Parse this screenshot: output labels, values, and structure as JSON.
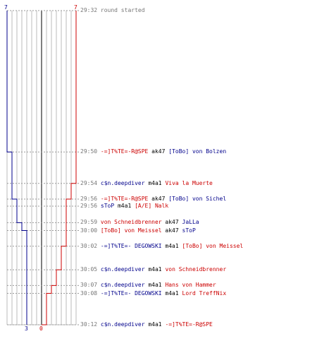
{
  "colors": {
    "blue_team": "#00008b",
    "red_team": "#cc0000",
    "weapon": "#000000",
    "time": "#777777",
    "grid": "#bbbbbb",
    "center": "#555555",
    "dashed": "#999999"
  },
  "chart_data": {
    "type": "line",
    "series": [
      {
        "color": "#00008b",
        "points": [
          [
            0,
            7
          ],
          [
            18,
            7
          ],
          [
            18,
            6
          ],
          [
            24,
            6
          ],
          [
            24,
            5
          ],
          [
            27,
            5
          ],
          [
            27,
            4
          ],
          [
            28,
            4
          ],
          [
            28,
            3
          ],
          [
            40,
            3
          ]
        ]
      },
      {
        "color": "#cc0000",
        "points": [
          [
            0,
            7
          ],
          [
            18,
            7
          ],
          [
            22,
            7
          ],
          [
            22,
            6
          ],
          [
            24,
            6
          ],
          [
            24,
            5
          ],
          [
            30,
            5
          ],
          [
            30,
            4
          ],
          [
            33,
            4
          ],
          [
            33,
            3
          ],
          [
            35,
            3
          ],
          [
            35,
            2
          ],
          [
            36,
            2
          ],
          [
            36,
            1
          ],
          [
            40,
            1
          ],
          [
            40,
            0
          ]
        ]
      }
    ],
    "top_labels": {
      "left": "7",
      "right": "7"
    },
    "bottom_labels": {
      "blue": "3",
      "red": "0"
    }
  },
  "events": [
    {
      "time": "29:32",
      "parts": [
        {
          "t": "round started",
          "c": "gray"
        }
      ]
    },
    {
      "time": "29:50",
      "parts": [
        {
          "t": "-=]T%TE=-R@SPE",
          "c": "red"
        },
        {
          "t": " ak47 ",
          "c": "blk"
        },
        {
          "t": "[ToBo] von Bolzen",
          "c": "blue"
        }
      ]
    },
    {
      "time": "29:54",
      "parts": [
        {
          "t": "c$n.deepdiver",
          "c": "blue"
        },
        {
          "t": " m4a1 ",
          "c": "blk"
        },
        {
          "t": "Viva la Muerte",
          "c": "red"
        }
      ]
    },
    {
      "time": "29:56",
      "parts": [
        {
          "t": "-=]T%TE=-R@SPE",
          "c": "red"
        },
        {
          "t": " ak47 ",
          "c": "blk"
        },
        {
          "t": "[ToBo] von Sichel",
          "c": "blue"
        }
      ]
    },
    {
      "time": "29:56",
      "parts": [
        {
          "t": "sToP",
          "c": "blue"
        },
        {
          "t": " m4a1 ",
          "c": "blk"
        },
        {
          "t": "[A/E] Nalk",
          "c": "red"
        }
      ]
    },
    {
      "time": "29:59",
      "parts": [
        {
          "t": "von Schneidbrenner",
          "c": "red"
        },
        {
          "t": " ak47 ",
          "c": "blk"
        },
        {
          "t": "JaLLa",
          "c": "blue"
        }
      ]
    },
    {
      "time": "30:00",
      "parts": [
        {
          "t": "[ToBo] von Meissel",
          "c": "red"
        },
        {
          "t": " ak47 ",
          "c": "blk"
        },
        {
          "t": "sToP",
          "c": "blue"
        }
      ]
    },
    {
      "time": "30:02",
      "parts": [
        {
          "t": "-=]T%TE=- DEGOWSKI",
          "c": "blue"
        },
        {
          "t": " m4a1 ",
          "c": "blk"
        },
        {
          "t": "[ToBo] von Meissel",
          "c": "red"
        }
      ]
    },
    {
      "time": "30:05",
      "parts": [
        {
          "t": "c$n.deepdiver",
          "c": "blue"
        },
        {
          "t": " m4a1 ",
          "c": "blk"
        },
        {
          "t": "von Schneidbrenner",
          "c": "red"
        }
      ]
    },
    {
      "time": "30:07",
      "parts": [
        {
          "t": "c$n.deepdiver",
          "c": "blue"
        },
        {
          "t": " m4a1 ",
          "c": "blk"
        },
        {
          "t": "Hans von Hammer",
          "c": "red"
        }
      ]
    },
    {
      "time": "30:08",
      "parts": [
        {
          "t": "-=]T%TE=- DEGOWSKI",
          "c": "blue"
        },
        {
          "t": " m4a1 ",
          "c": "blk"
        },
        {
          "t": "Lord TreffNix",
          "c": "red"
        }
      ]
    },
    {
      "time": "30:12",
      "parts": [
        {
          "t": "c$n.deepdiver",
          "c": "blue"
        },
        {
          "t": " m4a1 ",
          "c": "blk"
        },
        {
          "t": "-=]T%TE=-R@SPE",
          "c": "red"
        }
      ]
    }
  ]
}
